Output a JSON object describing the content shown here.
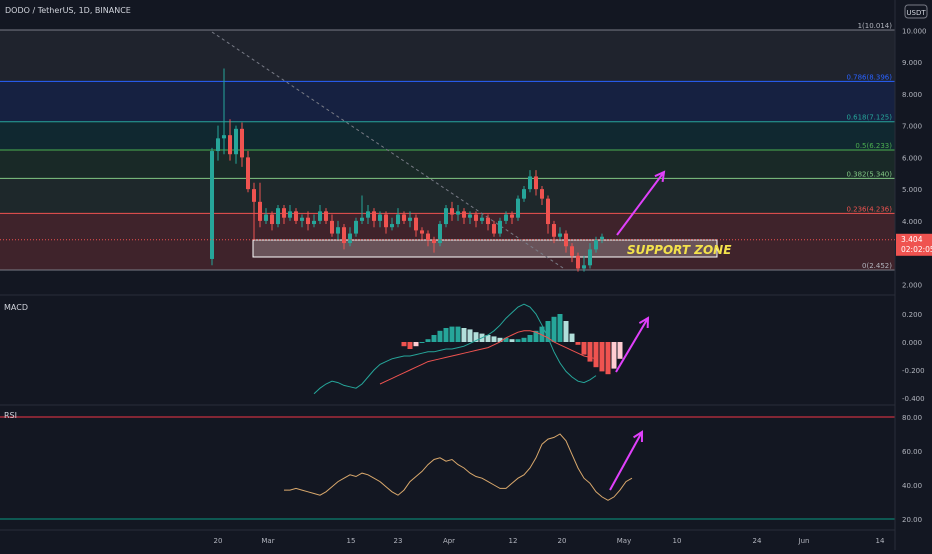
{
  "header": {
    "symbol_line": "DODO / TetherUS, 1D, BINANCE",
    "currency": "USDT"
  },
  "price_badge": {
    "price": "3.404",
    "countdown": "02:02:05"
  },
  "annotations": {
    "support_zone": "SUPPORT ZONE"
  },
  "colors": {
    "bg": "#131722",
    "up": "#26a69a",
    "down": "#ef5350",
    "arrow": "#e040fb",
    "rsi_line": "#d9a86c",
    "macd_line": "#26a69a",
    "signal_line": "#ef5350"
  },
  "chart_data": [
    {
      "type": "candlestick",
      "title": "DODO / TetherUS, 1D, BINANCE",
      "ylim": [
        2.0,
        10.5
      ],
      "y_ticks": [
        "2.000",
        "3.000",
        "4.000",
        "5.000",
        "6.000",
        "7.000",
        "8.000",
        "9.000",
        "10.000"
      ],
      "x_ticks": [
        "20",
        "Mar",
        "15",
        "23",
        "Apr",
        "12",
        "20",
        "May",
        "10",
        "24",
        "Jun",
        "14"
      ],
      "fib_levels": [
        {
          "label": "1(10.014)",
          "value": 10.014
        },
        {
          "label": "0.786(8.396)",
          "value": 8.396
        },
        {
          "label": "0.618(7.125)",
          "value": 7.125
        },
        {
          "label": "0.5(6.233)",
          "value": 6.233
        },
        {
          "label": "0.382(5.340)",
          "value": 5.34
        },
        {
          "label": "0.236(4.236)",
          "value": 4.236
        },
        {
          "label": "0(2.452)",
          "value": 2.452
        }
      ],
      "support_zone": [
        2.45,
        3.0
      ],
      "candles": [
        [
          2.8,
          6.2,
          2.6,
          6.3
        ],
        [
          6.2,
          6.6,
          5.9,
          7.0
        ],
        [
          6.6,
          6.7,
          6.1,
          8.8
        ],
        [
          6.7,
          6.1,
          5.9,
          7.2
        ],
        [
          6.1,
          6.9,
          5.8,
          7.0
        ],
        [
          6.9,
          6.0,
          5.7,
          7.1
        ],
        [
          6.0,
          5.0,
          4.9,
          6.2
        ],
        [
          5.0,
          4.6,
          3.4,
          5.2
        ],
        [
          4.6,
          4.0,
          3.8,
          5.2
        ],
        [
          4.0,
          4.2,
          3.9,
          4.4
        ],
        [
          4.2,
          3.9,
          3.7,
          4.3
        ],
        [
          3.9,
          4.4,
          3.8,
          4.5
        ],
        [
          4.4,
          4.1,
          3.9,
          4.5
        ],
        [
          4.1,
          4.3,
          4.0,
          4.5
        ],
        [
          4.3,
          4.0,
          3.9,
          4.4
        ],
        [
          4.0,
          4.1,
          3.8,
          4.2
        ],
        [
          4.1,
          3.9,
          3.7,
          4.3
        ],
        [
          3.9,
          4.0,
          3.8,
          4.2
        ],
        [
          4.0,
          4.3,
          3.9,
          4.5
        ],
        [
          4.3,
          4.0,
          3.9,
          4.4
        ],
        [
          4.0,
          3.6,
          3.5,
          4.2
        ],
        [
          3.6,
          3.8,
          3.4,
          4.0
        ],
        [
          3.8,
          3.3,
          3.1,
          3.9
        ],
        [
          3.3,
          3.6,
          3.2,
          3.8
        ],
        [
          3.6,
          4.0,
          3.5,
          4.1
        ],
        [
          4.0,
          4.1,
          3.9,
          4.8
        ],
        [
          4.1,
          4.3,
          3.9,
          4.5
        ],
        [
          4.3,
          4.0,
          3.8,
          4.4
        ],
        [
          4.0,
          4.2,
          3.8,
          4.3
        ],
        [
          4.2,
          3.8,
          3.6,
          4.3
        ],
        [
          3.8,
          3.9,
          3.7,
          4.1
        ],
        [
          3.9,
          4.2,
          3.8,
          4.4
        ],
        [
          4.2,
          4.0,
          3.9,
          4.3
        ],
        [
          4.0,
          4.1,
          3.8,
          4.3
        ],
        [
          4.1,
          3.7,
          3.5,
          4.2
        ],
        [
          3.7,
          3.6,
          3.4,
          3.8
        ],
        [
          3.6,
          3.4,
          3.2,
          3.7
        ],
        [
          3.4,
          3.3,
          3.0,
          3.5
        ],
        [
          3.3,
          3.9,
          3.2,
          4.0
        ],
        [
          3.9,
          4.4,
          3.8,
          4.5
        ],
        [
          4.4,
          4.2,
          4.0,
          4.6
        ],
        [
          4.2,
          4.3,
          4.0,
          4.5
        ],
        [
          4.3,
          4.1,
          3.9,
          4.4
        ],
        [
          4.1,
          4.2,
          3.9,
          4.3
        ],
        [
          4.2,
          4.0,
          3.8,
          4.3
        ],
        [
          4.0,
          4.1,
          3.9,
          4.2
        ],
        [
          4.1,
          3.9,
          3.7,
          4.2
        ],
        [
          3.9,
          3.6,
          3.5,
          4.0
        ],
        [
          3.6,
          4.0,
          3.5,
          4.1
        ],
        [
          4.0,
          4.2,
          3.9,
          4.3
        ],
        [
          4.2,
          4.1,
          3.9,
          4.3
        ],
        [
          4.1,
          4.7,
          4.0,
          4.8
        ],
        [
          4.7,
          5.0,
          4.6,
          5.1
        ],
        [
          5.0,
          5.4,
          4.9,
          5.6
        ],
        [
          5.4,
          5.0,
          4.8,
          5.6
        ],
        [
          5.0,
          4.7,
          4.5,
          5.1
        ],
        [
          4.7,
          3.9,
          3.6,
          4.8
        ],
        [
          3.9,
          3.5,
          3.3,
          4.0
        ],
        [
          3.5,
          3.6,
          3.4,
          3.8
        ],
        [
          3.6,
          3.2,
          3.0,
          3.7
        ],
        [
          3.2,
          2.9,
          2.7,
          3.3
        ],
        [
          2.9,
          2.5,
          2.4,
          3.0
        ],
        [
          2.5,
          2.6,
          2.4,
          2.9
        ],
        [
          2.6,
          3.1,
          2.5,
          3.3
        ],
        [
          3.1,
          3.4,
          3.0,
          3.5
        ],
        [
          3.4,
          3.5,
          3.3,
          3.6
        ]
      ]
    },
    {
      "type": "bar+line",
      "title": "MACD",
      "ylim": [
        -0.4,
        0.3
      ],
      "y_ticks": [
        "0.200",
        "0.000",
        "-0.200",
        "-0.400"
      ],
      "histogram_start": 32,
      "histogram": [
        -0.03,
        -0.05,
        -0.03,
        0.0,
        0.02,
        0.05,
        0.08,
        0.1,
        0.11,
        0.11,
        0.1,
        0.09,
        0.07,
        0.06,
        0.05,
        0.04,
        0.03,
        0.03,
        0.02,
        0.02,
        0.03,
        0.05,
        0.08,
        0.11,
        0.15,
        0.18,
        0.2,
        0.15,
        0.06,
        -0.02,
        -0.09,
        -0.14,
        -0.18,
        -0.21,
        -0.23,
        -0.19,
        -0.12
      ],
      "macd_line_start": 17,
      "macd_line": [
        -0.37,
        -0.33,
        -0.3,
        -0.28,
        -0.29,
        -0.31,
        -0.32,
        -0.33,
        -0.3,
        -0.25,
        -0.2,
        -0.16,
        -0.14,
        -0.12,
        -0.11,
        -0.1,
        -0.1,
        -0.09,
        -0.08,
        -0.07,
        -0.07,
        -0.06,
        -0.05,
        -0.05,
        -0.04,
        -0.03,
        -0.01,
        0.01,
        0.03,
        0.05,
        0.08,
        0.12,
        0.17,
        0.21,
        0.25,
        0.27,
        0.25,
        0.2,
        0.12,
        0.03,
        -0.07,
        -0.15,
        -0.21,
        -0.25,
        -0.28,
        -0.29,
        -0.27,
        -0.24
      ],
      "signal_line_start": 28,
      "signal_line": [
        -0.3,
        -0.28,
        -0.26,
        -0.24,
        -0.22,
        -0.2,
        -0.18,
        -0.16,
        -0.14,
        -0.13,
        -0.12,
        -0.11,
        -0.1,
        -0.09,
        -0.08,
        -0.07,
        -0.06,
        -0.05,
        -0.04,
        -0.02,
        0.0,
        0.03,
        0.05,
        0.07,
        0.08,
        0.08,
        0.07,
        0.05,
        0.03,
        0.0,
        -0.02,
        -0.04,
        -0.06,
        -0.08,
        -0.1,
        -0.11,
        -0.12
      ]
    },
    {
      "type": "line",
      "title": "RSI",
      "ylim": [
        15,
        85
      ],
      "y_ticks": [
        "80.00",
        "60.00",
        "40.00",
        "20.00"
      ],
      "bands": [
        80,
        20
      ],
      "rsi_start": 12,
      "rsi": [
        37,
        37,
        38,
        37,
        36,
        35,
        34,
        36,
        39,
        42,
        44,
        46,
        45,
        47,
        46,
        44,
        42,
        39,
        36,
        34,
        37,
        42,
        45,
        48,
        52,
        55,
        56,
        54,
        55,
        52,
        50,
        47,
        45,
        44,
        42,
        40,
        38,
        38,
        41,
        44,
        46,
        50,
        56,
        64,
        67,
        68,
        70,
        66,
        58,
        50,
        44,
        41,
        36,
        33,
        31,
        33,
        37,
        42,
        44
      ]
    }
  ]
}
